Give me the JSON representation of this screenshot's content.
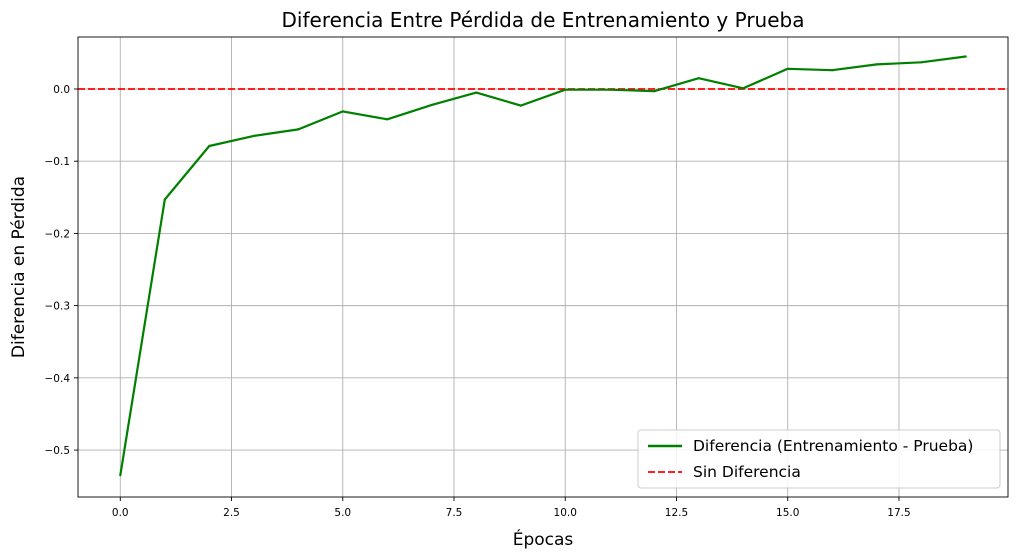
{
  "chart_data": {
    "type": "line",
    "title": "Diferencia Entre Pérdida de Entrenamiento y Prueba",
    "xlabel": "Épocas",
    "ylabel": "Diferencia en Pérdida",
    "xlim": [
      -0.95,
      19.95
    ],
    "ylim": [
      -0.565,
      0.072
    ],
    "x_ticks": [
      0.0,
      2.5,
      5.0,
      7.5,
      10.0,
      12.5,
      15.0,
      17.5
    ],
    "x_tick_labels": [
      "0.0",
      "2.5",
      "5.0",
      "7.5",
      "10.0",
      "12.5",
      "15.0",
      "17.5"
    ],
    "y_ticks": [
      0.0,
      -0.1,
      -0.2,
      -0.3,
      -0.4,
      -0.5
    ],
    "y_tick_labels": [
      "0.0",
      "−0.1",
      "−0.2",
      "−0.3",
      "−0.4",
      "−0.5"
    ],
    "grid": true,
    "legend_position": "bottom-right",
    "series": [
      {
        "name": "Diferencia (Entrenamiento - Prueba)",
        "color": "#008000",
        "style": "solid",
        "x": [
          0,
          1,
          2,
          3,
          4,
          5,
          6,
          7,
          8,
          9,
          10,
          11,
          12,
          13,
          14,
          15,
          16,
          17,
          18,
          19
        ],
        "values": [
          -0.535,
          -0.153,
          -0.079,
          -0.065,
          -0.056,
          -0.031,
          -0.042,
          -0.022,
          -0.005,
          -0.023,
          -0.001,
          -0.001,
          -0.003,
          0.015,
          0.001,
          0.028,
          0.026,
          0.034,
          0.037,
          0.045
        ]
      }
    ],
    "reference_lines": [
      {
        "name": "Sin Diferencia",
        "y": 0.0,
        "color": "#ff0000",
        "style": "dashed"
      }
    ]
  }
}
